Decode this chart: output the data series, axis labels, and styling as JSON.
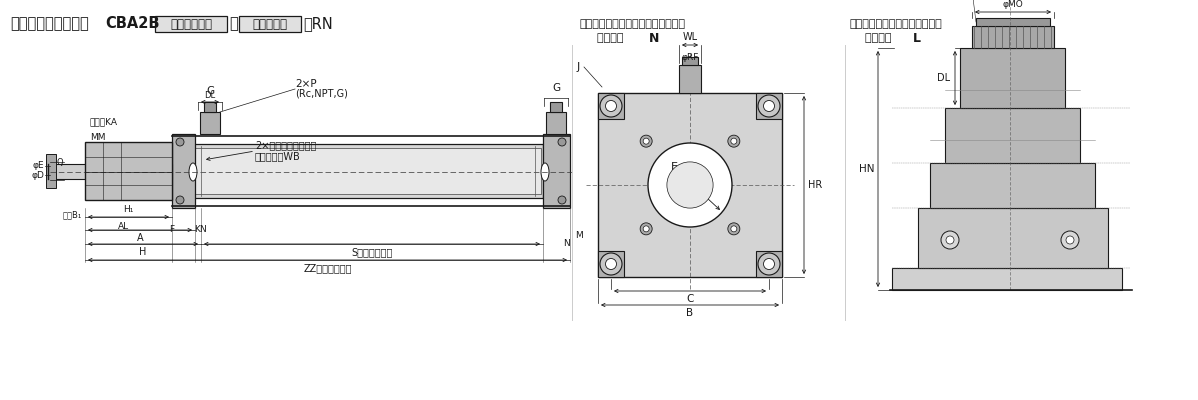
{
  "bg_color": "#ffffff",
  "line_color": "#1a1a1a",
  "light_gray": "#c8c8c8",
  "mid_gray": "#aaaaaa",
  "dark_gray": "#888888",
  "title_prefix": "ロッド側ロック付：",
  "title_code": "CBA2B",
  "title_box1": "チューブ内径",
  "title_sep": "－",
  "title_box2": "ストローク",
  "title_suffix": "－RN",
  "nonlock_line1": "マニュアル解除ノンロックタイプ：",
  "nonlock_line2": "：追記号 N",
  "lock_line1": "マニュアル解除ロックタイプ：",
  "lock_line2": "：追記号 L",
  "label_nimensha": "二面幅KA",
  "label_mm": "MM",
  "label_cushion": "2×クッションバルブ",
  "label_hex": "六角穴対达WB",
  "label_tai": "対达B₁"
}
